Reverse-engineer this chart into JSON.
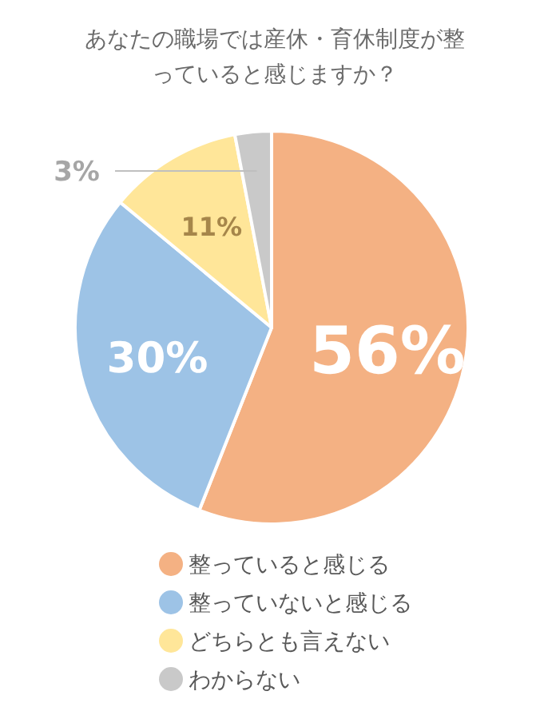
{
  "chart_data": {
    "type": "pie",
    "title": "あなたの職場では産休・育休制度が整っていると感じますか？",
    "categories": [
      "整っていると感じる",
      "整っていないと感じる",
      "どちらとも言えない",
      "わからない"
    ],
    "values": [
      56,
      30,
      11,
      3
    ],
    "colors": [
      "#f4b183",
      "#9dc3e6",
      "#ffe699",
      "#c9c9c9"
    ],
    "value_labels": [
      "56%",
      "30%",
      "11%",
      "3%"
    ],
    "legend": "bottom"
  }
}
